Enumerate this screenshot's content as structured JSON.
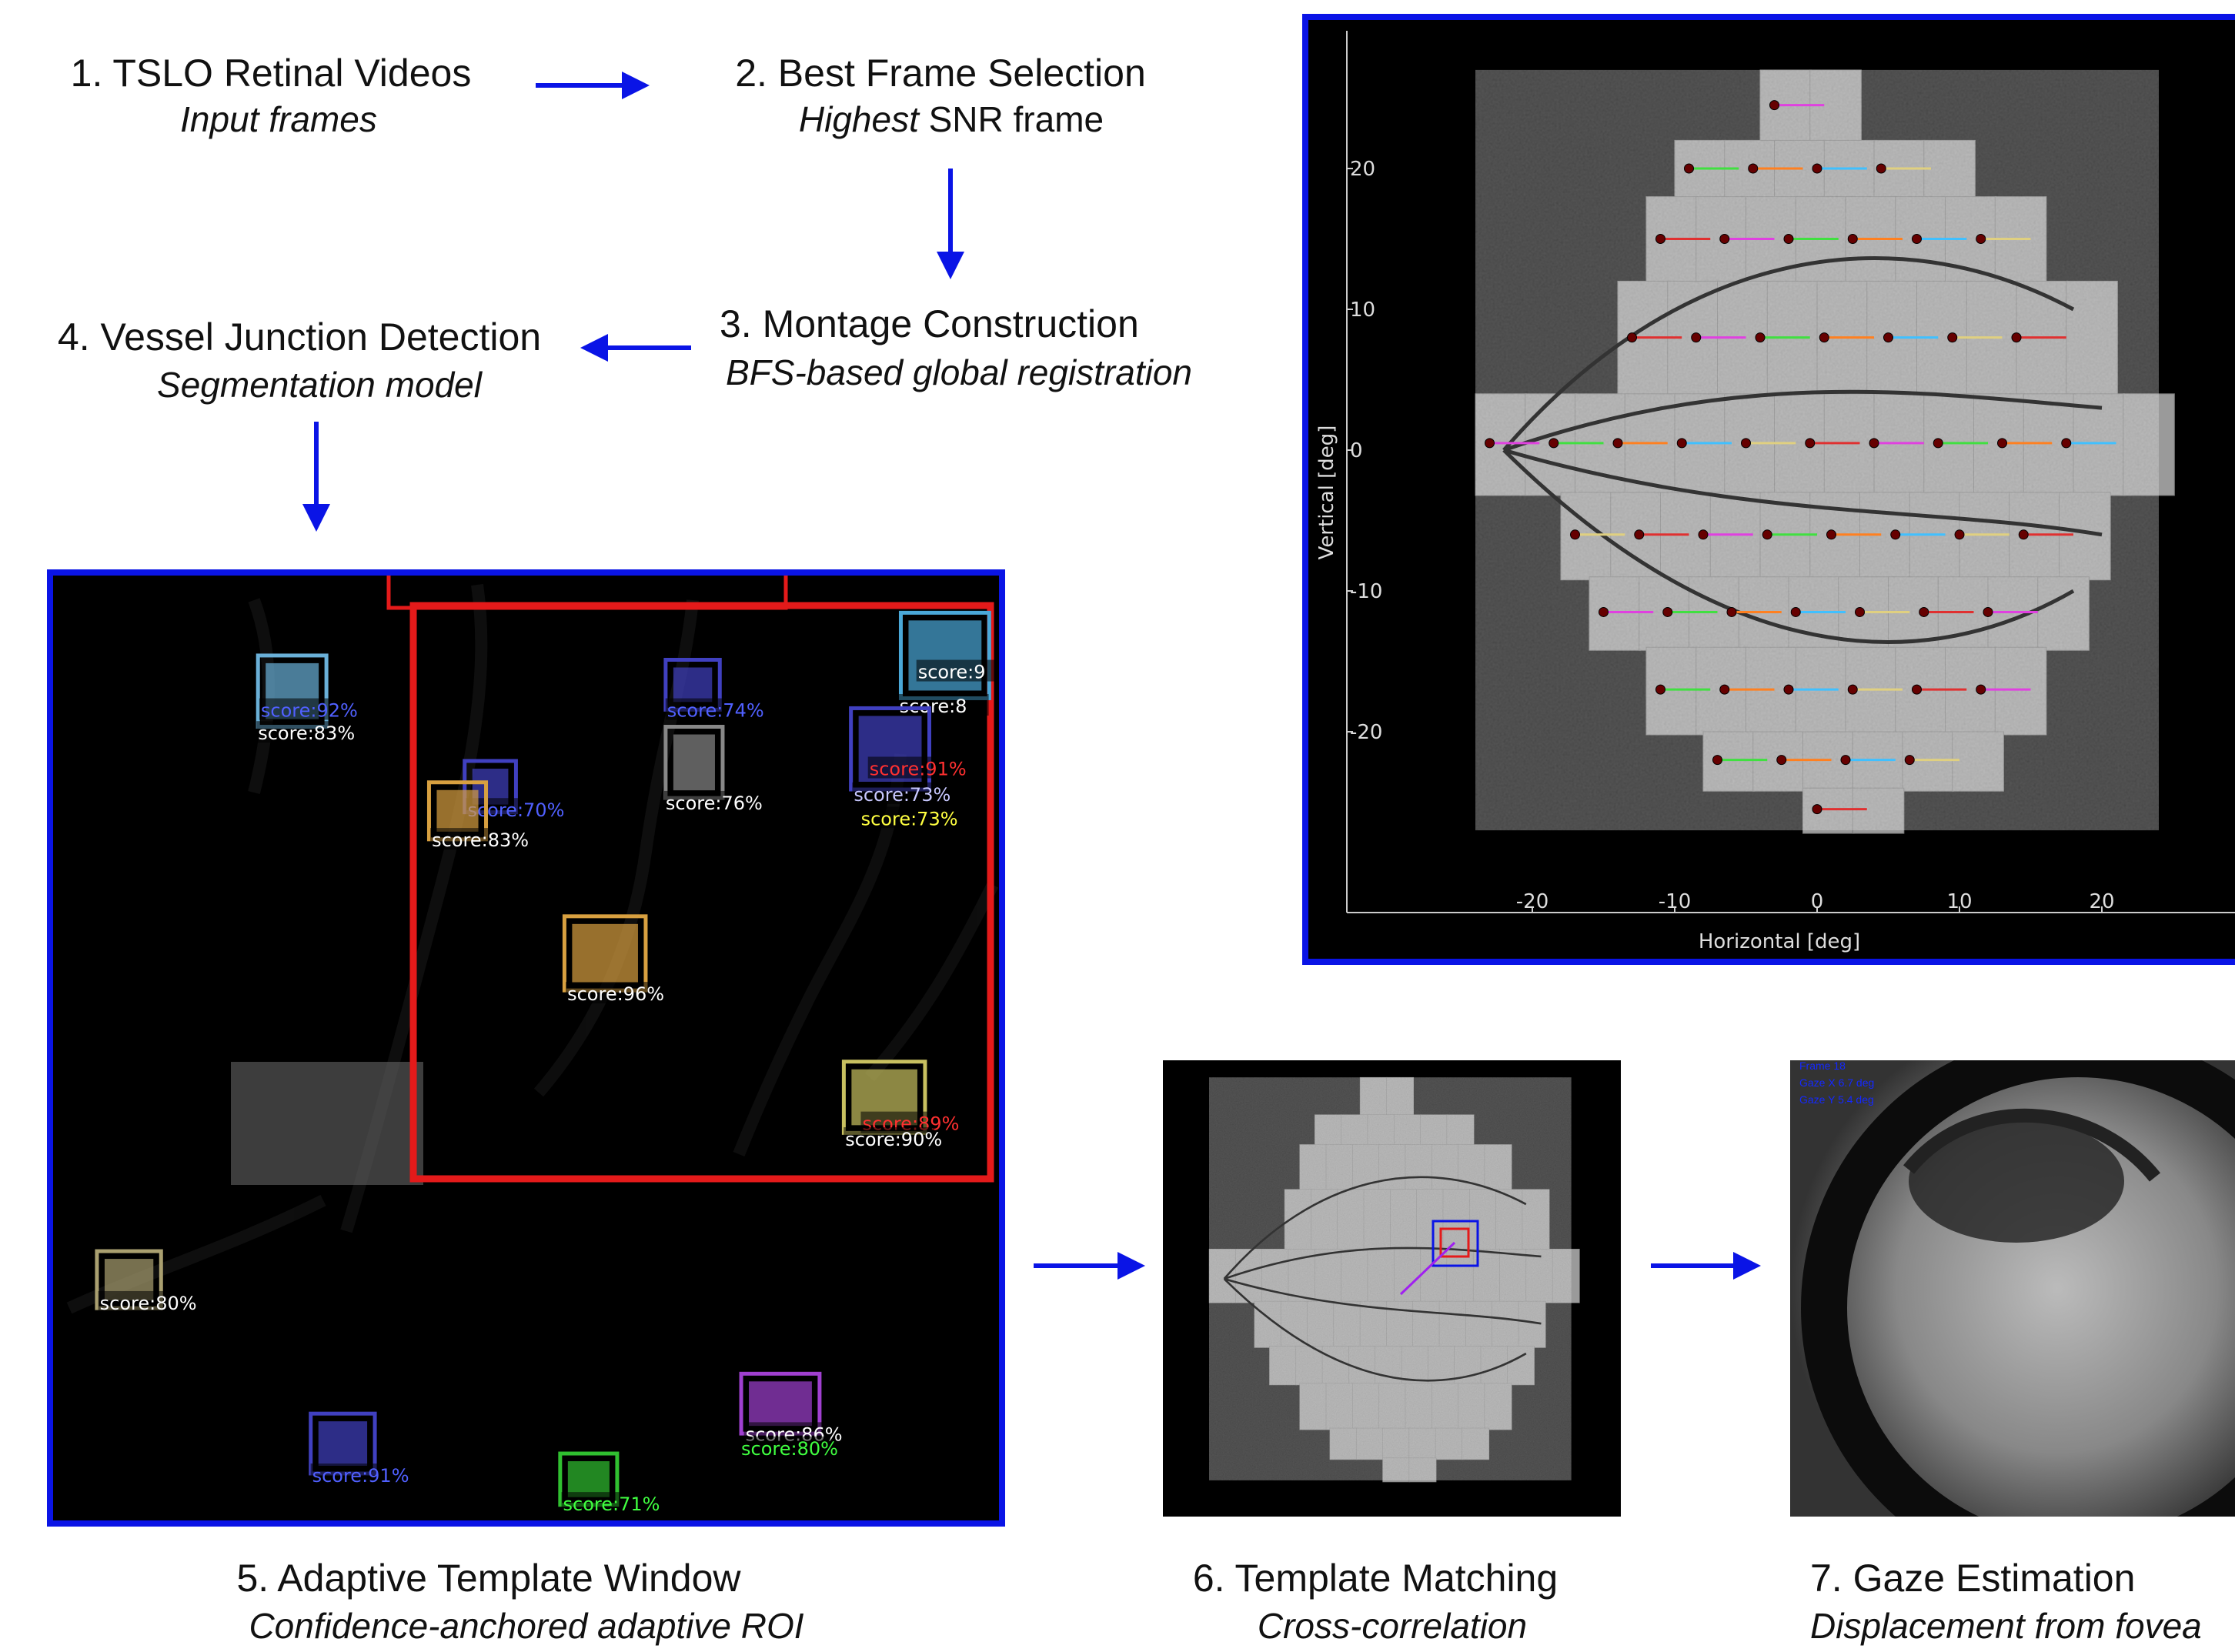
{
  "steps": [
    {
      "title": "1. TSLO Retinal Videos",
      "subtitle": "Input frames"
    },
    {
      "title": "2. Best Frame Selection",
      "subtitle_emphasis": "Highest",
      "subtitle": "SNR frame"
    },
    {
      "title": "3. Montage Construction",
      "subtitle": "BFS-based global registration"
    },
    {
      "title": "4. Vessel Junction Detection",
      "subtitle": "Segmentation model"
    },
    {
      "title": "5. Adaptive Template Window",
      "subtitle": "Confidence-anchored adaptive ROI"
    },
    {
      "title": "6. Template Matching",
      "subtitle": "Cross-correlation"
    },
    {
      "title": "7. Gaze Estimation",
      "subtitle": "Displacement from fovea"
    }
  ],
  "montage_plot": {
    "xlabel": "Horizontal [deg]",
    "ylabel": "Vertical [deg]",
    "xticks": [
      -20,
      -10,
      0,
      10,
      20
    ],
    "yticks": [
      20,
      10,
      0,
      -10,
      -20
    ]
  },
  "detections": [
    "score:92%",
    "score:83%",
    "score:74%",
    "score:9",
    "score:8",
    "score:91%",
    "score:73%",
    "score:73%",
    "score:76%",
    "score:70%",
    "score:83%",
    "score:96%",
    "score:89%",
    "score:90%",
    "score:80%",
    "score:86%",
    "score:80%",
    "score:91%",
    "score:71%"
  ],
  "gaze_overlay": [
    "Frame 18",
    "Gaze X 6.7 deg",
    "Gaze Y 5.4 deg"
  ]
}
